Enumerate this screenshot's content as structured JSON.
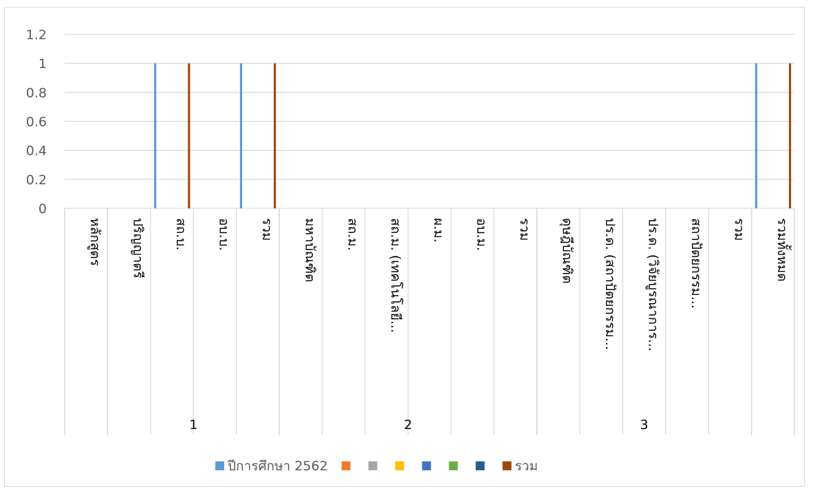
{
  "chart_data": {
    "type": "bar",
    "title": "",
    "xlabel": "",
    "ylabel": "",
    "ylim": [
      0,
      1.2
    ],
    "yticks": [
      0,
      0.2,
      0.4,
      0.6,
      0.8,
      1,
      1.2
    ],
    "ytick_labels": [
      "0",
      "0.2",
      "0.4",
      "0.6",
      "0.8",
      "1",
      "1.2"
    ],
    "grid": true,
    "legend_position": "bottom",
    "categories": [
      "หลักสูตร",
      "ปริญญาตรี",
      "สถ.บ.",
      "อบ.บ.",
      "รวม",
      "มหาบัณฑิต",
      "สถ.ม.",
      "สถ.ม. (เทคโนโลยี...",
      "ผ.ม.",
      "อบ.ม.",
      "รวม",
      "ดุษฎีบัณฑิต",
      "ปร.ด. (สถาปัตยกรรม...",
      "ปร.ด. (วิจัยบูรณาการ...",
      "สถาปัตยกรรม...",
      "รวม",
      "รวมทั้งหมด"
    ],
    "groups": [
      {
        "label": "",
        "start": 0,
        "end": 1
      },
      {
        "label": "1",
        "start": 1,
        "end": 5
      },
      {
        "label": "2",
        "start": 5,
        "end": 11
      },
      {
        "label": "3",
        "start": 11,
        "end": 16
      },
      {
        "label": "",
        "start": 16,
        "end": 17
      }
    ],
    "series": [
      {
        "name": "ปีการศึกษา 2562",
        "color": "#5b9bd5",
        "values": [
          0,
          0,
          1,
          0,
          1,
          0,
          0,
          0,
          0,
          0,
          0,
          0,
          0,
          0,
          0,
          0,
          1
        ]
      },
      {
        "name": "",
        "color": "#ed7d31",
        "values": [
          0,
          0,
          0,
          0,
          0,
          0,
          0,
          0,
          0,
          0,
          0,
          0,
          0,
          0,
          0,
          0,
          0
        ]
      },
      {
        "name": "",
        "color": "#a5a5a5",
        "values": [
          0,
          0,
          0,
          0,
          0,
          0,
          0,
          0,
          0,
          0,
          0,
          0,
          0,
          0,
          0,
          0,
          0
        ]
      },
      {
        "name": "",
        "color": "#ffc000",
        "values": [
          0,
          0,
          0,
          0,
          0,
          0,
          0,
          0,
          0,
          0,
          0,
          0,
          0,
          0,
          0,
          0,
          0
        ]
      },
      {
        "name": "",
        "color": "#4472c4",
        "values": [
          0,
          0,
          0,
          0,
          0,
          0,
          0,
          0,
          0,
          0,
          0,
          0,
          0,
          0,
          0,
          0,
          0
        ]
      },
      {
        "name": "",
        "color": "#70ad47",
        "values": [
          0,
          0,
          0,
          0,
          0,
          0,
          0,
          0,
          0,
          0,
          0,
          0,
          0,
          0,
          0,
          0,
          0
        ]
      },
      {
        "name": "",
        "color": "#255e91",
        "values": [
          0,
          0,
          0,
          0,
          0,
          0,
          0,
          0,
          0,
          0,
          0,
          0,
          0,
          0,
          0,
          0,
          0
        ]
      },
      {
        "name": "รวม",
        "color": "#9e480e",
        "values": [
          0,
          0,
          1,
          0,
          1,
          0,
          0,
          0,
          0,
          0,
          0,
          0,
          0,
          0,
          0,
          0,
          1
        ]
      }
    ]
  }
}
